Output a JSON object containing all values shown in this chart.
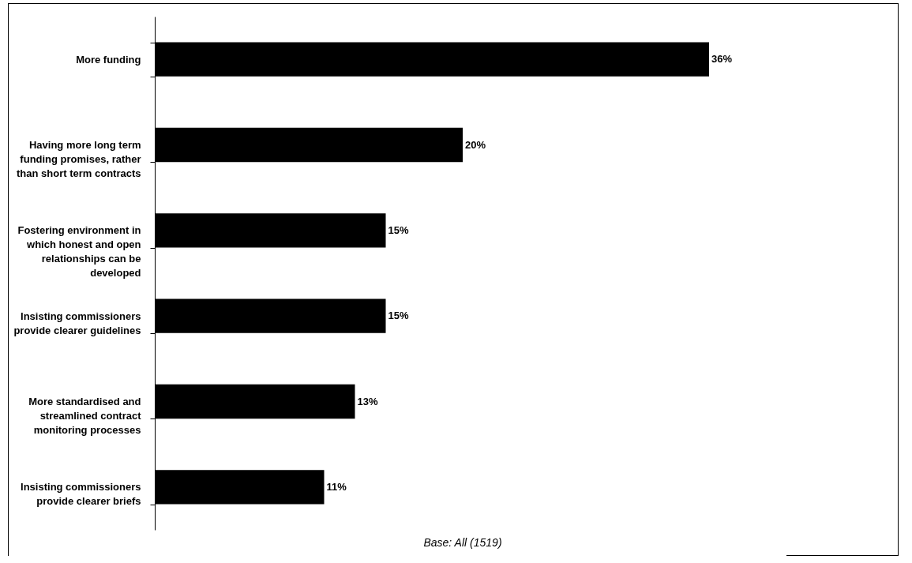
{
  "chart_data": {
    "type": "bar",
    "orientation": "horizontal",
    "categories": [
      "More funding",
      "Having more long term funding promises, rather than short term contracts",
      "Fostering environment in which honest and open relationships can be developed",
      "Insisting commissioners provide clearer guidelines",
      "More standardised and streamlined contract monitoring processes",
      "Insisting commissioners provide clearer briefs"
    ],
    "values": [
      36,
      20,
      15,
      15,
      13,
      11
    ],
    "value_labels": [
      "36%",
      "20%",
      "15%",
      "15%",
      "13%",
      "11%"
    ],
    "color": "#000000",
    "annotations": [
      "Base: All (1519)"
    ]
  }
}
